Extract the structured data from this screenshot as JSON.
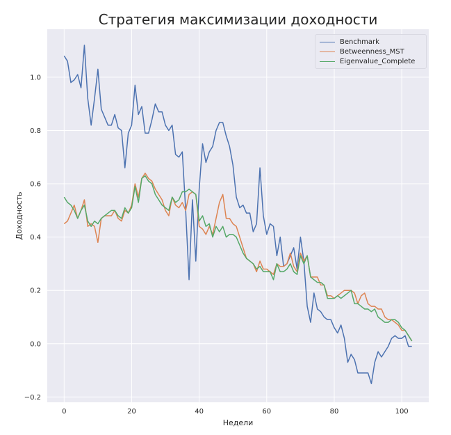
{
  "chart_data": {
    "type": "line",
    "title": "Стратегия максимизации доходности",
    "xlabel": "Недели",
    "ylabel": "Доходность",
    "xlim": [
      -5,
      108
    ],
    "ylim": [
      -0.22,
      1.18
    ],
    "xticks": [
      0,
      20,
      40,
      60,
      80,
      100
    ],
    "yticks": [
      -0.2,
      0.0,
      0.2,
      0.4,
      0.6,
      0.8,
      1.0
    ],
    "grid": true,
    "legend_position": "top-right",
    "series": [
      {
        "name": "Benchmark",
        "color": "#4c72b0",
        "x": [
          0,
          1,
          2,
          3,
          4,
          5,
          6,
          7,
          8,
          9,
          10,
          11,
          12,
          13,
          14,
          15,
          16,
          17,
          18,
          19,
          20,
          21,
          22,
          23,
          24,
          25,
          26,
          27,
          28,
          29,
          30,
          31,
          32,
          33,
          34,
          35,
          36,
          37,
          38,
          39,
          40,
          41,
          42,
          43,
          44,
          45,
          46,
          47,
          48,
          49,
          50,
          51,
          52,
          53,
          54,
          55,
          56,
          57,
          58,
          59,
          60,
          61,
          62,
          63,
          64,
          65,
          66,
          67,
          68,
          69,
          70,
          71,
          72,
          73,
          74,
          75,
          76,
          77,
          78,
          79,
          80,
          81,
          82,
          83,
          84,
          85,
          86,
          87,
          88,
          89,
          90,
          91,
          92,
          93,
          94,
          95,
          96,
          97,
          98,
          99,
          100,
          101,
          102,
          103
        ],
        "values": [
          1.08,
          1.06,
          0.98,
          0.99,
          1.01,
          0.96,
          1.12,
          0.92,
          0.82,
          0.92,
          1.03,
          0.88,
          0.85,
          0.82,
          0.82,
          0.86,
          0.81,
          0.8,
          0.66,
          0.79,
          0.82,
          0.97,
          0.86,
          0.89,
          0.79,
          0.79,
          0.84,
          0.9,
          0.87,
          0.87,
          0.82,
          0.8,
          0.82,
          0.71,
          0.7,
          0.72,
          0.5,
          0.24,
          0.54,
          0.31,
          0.58,
          0.75,
          0.68,
          0.72,
          0.74,
          0.8,
          0.83,
          0.83,
          0.78,
          0.74,
          0.67,
          0.55,
          0.51,
          0.52,
          0.49,
          0.49,
          0.42,
          0.45,
          0.66,
          0.48,
          0.41,
          0.45,
          0.44,
          0.33,
          0.4,
          0.29,
          0.3,
          0.33,
          0.36,
          0.28,
          0.4,
          0.31,
          0.14,
          0.08,
          0.19,
          0.13,
          0.12,
          0.1,
          0.09,
          0.09,
          0.06,
          0.04,
          0.07,
          0.02,
          -0.07,
          -0.04,
          -0.06,
          -0.11,
          -0.11,
          -0.11,
          -0.11,
          -0.15,
          -0.07,
          -0.03,
          -0.05,
          -0.03,
          -0.01,
          0.02,
          0.03,
          0.02,
          0.02,
          0.03,
          -0.01,
          -0.01
        ]
      },
      {
        "name": "Betweenness_MST",
        "color": "#dd8452",
        "x": [
          0,
          1,
          2,
          3,
          4,
          5,
          6,
          7,
          8,
          9,
          10,
          11,
          12,
          13,
          14,
          15,
          16,
          17,
          18,
          19,
          20,
          21,
          22,
          23,
          24,
          25,
          26,
          27,
          28,
          29,
          30,
          31,
          32,
          33,
          34,
          35,
          36,
          37,
          38,
          39,
          40,
          41,
          42,
          43,
          44,
          45,
          46,
          47,
          48,
          49,
          50,
          51,
          52,
          53,
          54,
          55,
          56,
          57,
          58,
          59,
          60,
          61,
          62,
          63,
          64,
          65,
          66,
          67,
          68,
          69,
          70,
          71,
          72,
          73,
          74,
          75,
          76,
          77,
          78,
          79,
          80,
          81,
          82,
          83,
          84,
          85,
          86,
          87,
          88,
          89,
          90,
          91,
          92,
          93,
          94,
          95,
          96,
          97,
          98,
          99,
          100,
          101,
          102,
          103
        ],
        "values": [
          0.45,
          0.46,
          0.49,
          0.52,
          0.47,
          0.5,
          0.54,
          0.44,
          0.45,
          0.44,
          0.38,
          0.47,
          0.48,
          0.48,
          0.48,
          0.5,
          0.47,
          0.46,
          0.5,
          0.49,
          0.52,
          0.6,
          0.55,
          0.62,
          0.64,
          0.62,
          0.61,
          0.58,
          0.56,
          0.54,
          0.5,
          0.48,
          0.55,
          0.52,
          0.51,
          0.53,
          0.5,
          0.56,
          0.57,
          0.56,
          0.44,
          0.43,
          0.41,
          0.44,
          0.41,
          0.47,
          0.53,
          0.56,
          0.47,
          0.47,
          0.45,
          0.44,
          0.4,
          0.36,
          0.32,
          0.31,
          0.3,
          0.27,
          0.31,
          0.28,
          0.28,
          0.27,
          0.26,
          0.3,
          0.29,
          0.29,
          0.3,
          0.34,
          0.29,
          0.27,
          0.34,
          0.31,
          0.33,
          0.25,
          0.25,
          0.25,
          0.22,
          0.22,
          0.18,
          0.18,
          0.17,
          0.18,
          0.19,
          0.2,
          0.2,
          0.2,
          0.19,
          0.15,
          0.18,
          0.19,
          0.15,
          0.14,
          0.14,
          0.13,
          0.13,
          0.1,
          0.09,
          0.09,
          0.08,
          0.07,
          0.05,
          0.05,
          0.03,
          0.01
        ]
      },
      {
        "name": "Eigenvalue_Complete",
        "color": "#55a868",
        "x": [
          0,
          1,
          2,
          3,
          4,
          5,
          6,
          7,
          8,
          9,
          10,
          11,
          12,
          13,
          14,
          15,
          16,
          17,
          18,
          19,
          20,
          21,
          22,
          23,
          24,
          25,
          26,
          27,
          28,
          29,
          30,
          31,
          32,
          33,
          34,
          35,
          36,
          37,
          38,
          39,
          40,
          41,
          42,
          43,
          44,
          45,
          46,
          47,
          48,
          49,
          50,
          51,
          52,
          53,
          54,
          55,
          56,
          57,
          58,
          59,
          60,
          61,
          62,
          63,
          64,
          65,
          66,
          67,
          68,
          69,
          70,
          71,
          72,
          73,
          74,
          75,
          76,
          77,
          78,
          79,
          80,
          81,
          82,
          83,
          84,
          85,
          86,
          87,
          88,
          89,
          90,
          91,
          92,
          93,
          94,
          95,
          96,
          97,
          98,
          99,
          100,
          101,
          102,
          103
        ],
        "values": [
          0.55,
          0.53,
          0.52,
          0.5,
          0.47,
          0.5,
          0.52,
          0.46,
          0.44,
          0.46,
          0.45,
          0.47,
          0.48,
          0.49,
          0.5,
          0.5,
          0.48,
          0.47,
          0.51,
          0.49,
          0.51,
          0.59,
          0.53,
          0.62,
          0.63,
          0.61,
          0.6,
          0.56,
          0.54,
          0.52,
          0.51,
          0.5,
          0.55,
          0.53,
          0.54,
          0.57,
          0.57,
          0.58,
          0.57,
          0.56,
          0.46,
          0.48,
          0.44,
          0.45,
          0.4,
          0.44,
          0.42,
          0.44,
          0.4,
          0.41,
          0.41,
          0.4,
          0.37,
          0.34,
          0.32,
          0.31,
          0.3,
          0.28,
          0.29,
          0.27,
          0.27,
          0.27,
          0.24,
          0.3,
          0.27,
          0.27,
          0.28,
          0.3,
          0.27,
          0.26,
          0.33,
          0.3,
          0.33,
          0.25,
          0.24,
          0.23,
          0.23,
          0.22,
          0.17,
          0.17,
          0.17,
          0.18,
          0.17,
          0.18,
          0.19,
          0.2,
          0.15,
          0.15,
          0.14,
          0.13,
          0.13,
          0.12,
          0.13,
          0.1,
          0.09,
          0.08,
          0.08,
          0.09,
          0.09,
          0.08,
          0.06,
          0.05,
          0.03,
          0.01
        ]
      }
    ]
  }
}
